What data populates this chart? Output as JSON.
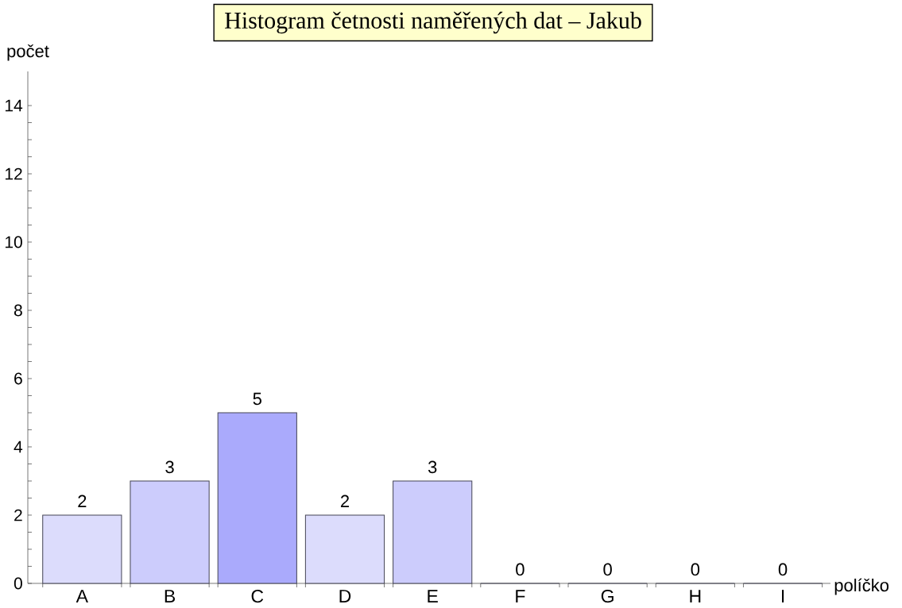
{
  "chart_data": {
    "type": "bar",
    "title": "Histogram četnosti naměřených dat – Jakub",
    "xlabel": "políčko",
    "ylabel": "počet",
    "categories": [
      "A",
      "B",
      "C",
      "D",
      "E",
      "F",
      "G",
      "H",
      "I"
    ],
    "values": [
      2,
      3,
      5,
      2,
      3,
      0,
      0,
      0,
      0
    ],
    "colors": [
      "#dcdcfc",
      "#ccccfc",
      "#aaaafc",
      "#dcdcfc",
      "#ccccfc",
      "#fcfcff",
      "#fcfcff",
      "#fcfcff",
      "#fcfcff"
    ],
    "ylim": [
      0,
      15
    ],
    "yticks": [
      0,
      2,
      4,
      6,
      8,
      10,
      12,
      14
    ],
    "data_labels": true
  }
}
